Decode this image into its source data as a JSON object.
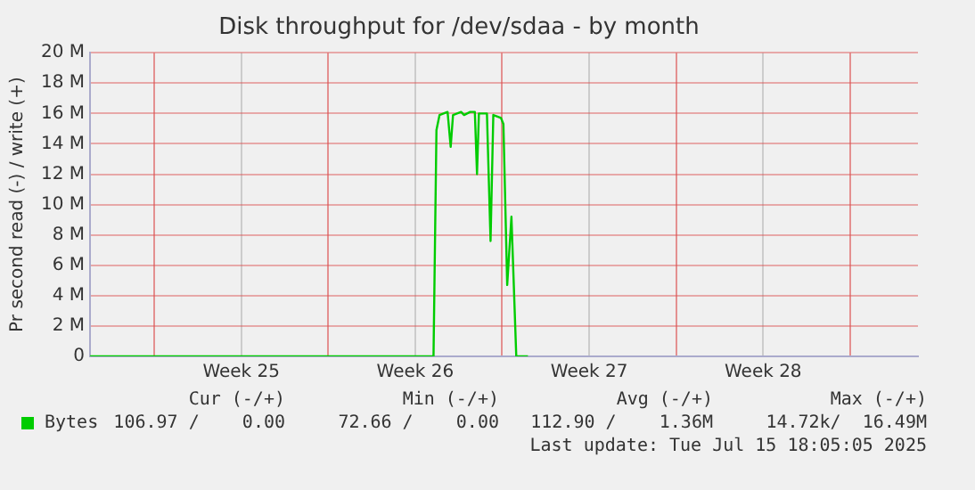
{
  "chart_data": {
    "type": "line",
    "title": "Disk throughput for /dev/sdaa - by month",
    "ylabel": "Pr second read (-) / write (+)",
    "x": [
      "2025-06-13T10:00",
      "2025-06-27T05:40",
      "2025-06-27T08:30",
      "2025-06-27T11:30",
      "2025-06-27T19:15",
      "2025-06-27T22:15",
      "2025-06-28T00:30",
      "2025-06-28T08:20",
      "2025-06-28T11:10",
      "2025-06-28T17:05",
      "2025-06-28T21:35",
      "2025-06-28T23:40",
      "2025-06-29T01:30",
      "2025-06-29T09:15",
      "2025-06-29T12:45",
      "2025-06-29T15:25",
      "2025-06-29T22:50",
      "2025-06-30T01:10",
      "2025-06-30T04:50",
      "2025-06-30T08:55",
      "2025-06-30T13:35",
      "2025-07-01T00:50"
    ],
    "series": [
      {
        "name": "Bytes",
        "color": "#00cc00",
        "values": [
          0,
          0,
          14.9,
          15.9,
          16.1,
          13.8,
          15.9,
          16.1,
          15.9,
          16.1,
          16.1,
          12.0,
          16.0,
          16.0,
          7.6,
          15.9,
          15.7,
          15.3,
          4.7,
          9.2,
          0,
          0
        ]
      }
    ],
    "xlim": [
      "2025-06-13T10:00",
      "2025-07-16T17:30"
    ],
    "xticks": [
      {
        "value": "2025-06-16",
        "label": null
      },
      {
        "value": "2025-06-19T12:00",
        "label": "Week 25"
      },
      {
        "value": "2025-06-23",
        "label": null
      },
      {
        "value": "2025-06-26T12:00",
        "label": "Week 26"
      },
      {
        "value": "2025-06-30",
        "label": null
      },
      {
        "value": "2025-07-03T12:00",
        "label": "Week 27"
      },
      {
        "value": "2025-07-07",
        "label": null
      },
      {
        "value": "2025-07-10T12:00",
        "label": "Week 28"
      },
      {
        "value": "2025-07-14",
        "label": null
      }
    ],
    "ylim": [
      0,
      20
    ],
    "yticks": [
      {
        "value": 0,
        "label": "0"
      },
      {
        "value": 2,
        "label": "2 M"
      },
      {
        "value": 4,
        "label": "4 M"
      },
      {
        "value": 6,
        "label": "6 M"
      },
      {
        "value": 8,
        "label": "8 M"
      },
      {
        "value": 10,
        "label": "10 M"
      },
      {
        "value": 12,
        "label": "12 M"
      },
      {
        "value": 14,
        "label": "14 M"
      },
      {
        "value": 16,
        "label": "16 M"
      },
      {
        "value": 18,
        "label": "18 M"
      },
      {
        "value": 20,
        "label": "20 M"
      }
    ],
    "grid": true,
    "legend": "bottom left",
    "marker": "none",
    "line_style": "solid",
    "annotations": [
      "Cur (-/+)",
      "Min (-/+)",
      "Avg (-/+)",
      "Max (-/+)",
      "106.97 /    0.00",
      "72.66 /    0.00",
      "112.90 /    1.36M",
      "14.72k/  16.49M",
      "Last update: Tue Jul 15 18:05:05 2025"
    ]
  }
}
